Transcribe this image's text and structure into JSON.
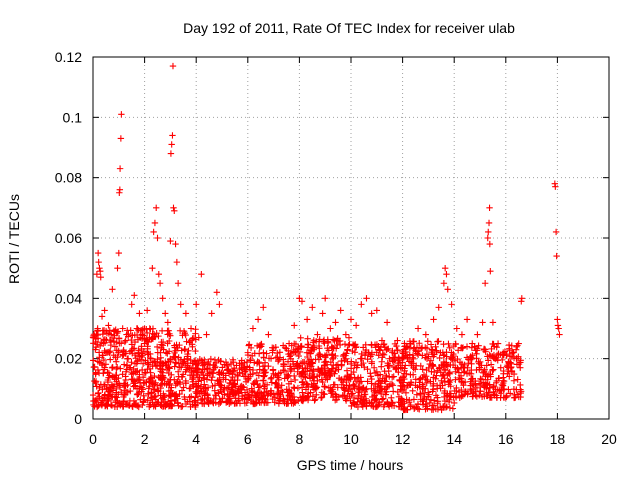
{
  "chart_data": {
    "type": "scatter",
    "title": "Day 192 of 2011, Rate Of TEC Index for receiver ulab",
    "xlabel": "GPS time / hours",
    "ylabel": "ROTI / TECUs",
    "xlim": [
      0,
      20
    ],
    "ylim": [
      0,
      0.12
    ],
    "x_ticks": [
      0,
      2,
      4,
      6,
      8,
      10,
      12,
      14,
      16,
      18,
      20
    ],
    "x_tick_labels": [
      "0",
      "2",
      "4",
      "6",
      "8",
      "10",
      "12",
      "14",
      "16",
      "18",
      "20"
    ],
    "y_ticks": [
      0,
      0.02,
      0.04,
      0.06,
      0.08,
      0.1,
      0.12
    ],
    "y_tick_labels": [
      "0",
      "0.02",
      "0.04",
      "0.06",
      "0.08",
      "0.1",
      "0.12"
    ],
    "grid": true,
    "marker": "plus",
    "color": "#ff0000",
    "series": [
      {
        "points": [
          [
            0.1,
            0.012
          ],
          [
            0.15,
            0.048
          ],
          [
            0.2,
            0.055
          ],
          [
            0.22,
            0.052
          ],
          [
            0.25,
            0.05
          ],
          [
            0.28,
            0.049
          ],
          [
            0.3,
            0.047
          ],
          [
            0.18,
            0.03
          ],
          [
            0.35,
            0.034
          ],
          [
            0.4,
            0.025
          ],
          [
            0.45,
            0.036
          ],
          [
            0.5,
            0.022
          ],
          [
            0.6,
            0.031
          ],
          [
            0.7,
            0.028
          ],
          [
            0.75,
            0.043
          ],
          [
            0.85,
            0.024
          ],
          [
            0.9,
            0.019
          ],
          [
            0.95,
            0.05
          ],
          [
            1.0,
            0.055
          ],
          [
            1.05,
            0.083
          ],
          [
            1.08,
            0.093
          ],
          [
            1.1,
            0.101
          ],
          [
            1.02,
            0.075
          ],
          [
            1.04,
            0.076
          ],
          [
            1.15,
            0.03
          ],
          [
            1.3,
            0.028
          ],
          [
            1.5,
            0.038
          ],
          [
            1.6,
            0.041
          ],
          [
            1.7,
            0.03
          ],
          [
            1.8,
            0.035
          ],
          [
            1.9,
            0.028
          ],
          [
            2.0,
            0.025
          ],
          [
            2.1,
            0.036
          ],
          [
            2.2,
            0.03
          ],
          [
            2.3,
            0.05
          ],
          [
            2.35,
            0.062
          ],
          [
            2.4,
            0.065
          ],
          [
            2.45,
            0.07
          ],
          [
            2.5,
            0.06
          ],
          [
            2.55,
            0.048
          ],
          [
            2.6,
            0.045
          ],
          [
            2.7,
            0.04
          ],
          [
            2.8,
            0.035
          ],
          [
            2.9,
            0.032
          ],
          [
            3.0,
            0.059
          ],
          [
            3.02,
            0.088
          ],
          [
            3.05,
            0.091
          ],
          [
            3.08,
            0.094
          ],
          [
            3.1,
            0.117
          ],
          [
            3.12,
            0.07
          ],
          [
            3.15,
            0.069
          ],
          [
            3.2,
            0.058
          ],
          [
            3.25,
            0.052
          ],
          [
            3.3,
            0.045
          ],
          [
            3.4,
            0.038
          ],
          [
            3.6,
            0.035
          ],
          [
            3.8,
            0.03
          ],
          [
            4.0,
            0.038
          ],
          [
            4.1,
            0.027
          ],
          [
            4.2,
            0.048
          ],
          [
            4.4,
            0.028
          ],
          [
            4.6,
            0.035
          ],
          [
            4.8,
            0.042
          ],
          [
            4.9,
            0.038
          ],
          [
            5.2,
            0.018
          ],
          [
            5.5,
            0.016
          ],
          [
            5.8,
            0.015
          ],
          [
            6.0,
            0.022
          ],
          [
            6.2,
            0.03
          ],
          [
            6.4,
            0.033
          ],
          [
            6.6,
            0.037
          ],
          [
            6.8,
            0.028
          ],
          [
            7.0,
            0.015
          ],
          [
            7.2,
            0.013
          ],
          [
            7.4,
            0.018
          ],
          [
            7.6,
            0.025
          ],
          [
            7.8,
            0.031
          ],
          [
            8.0,
            0.04
          ],
          [
            8.1,
            0.039
          ],
          [
            8.3,
            0.033
          ],
          [
            8.5,
            0.037
          ],
          [
            8.7,
            0.028
          ],
          [
            8.9,
            0.035
          ],
          [
            9.0,
            0.04
          ],
          [
            9.2,
            0.03
          ],
          [
            9.4,
            0.032
          ],
          [
            9.6,
            0.036
          ],
          [
            9.8,
            0.028
          ],
          [
            10.0,
            0.033
          ],
          [
            10.2,
            0.031
          ],
          [
            10.4,
            0.038
          ],
          [
            10.6,
            0.04
          ],
          [
            10.8,
            0.035
          ],
          [
            11.0,
            0.036
          ],
          [
            11.2,
            0.026
          ],
          [
            11.4,
            0.032
          ],
          [
            11.6,
            0.022
          ],
          [
            11.8,
            0.026
          ],
          [
            12.0,
            0.02
          ],
          [
            12.3,
            0.025
          ],
          [
            12.6,
            0.03
          ],
          [
            12.9,
            0.028
          ],
          [
            13.2,
            0.033
          ],
          [
            13.4,
            0.037
          ],
          [
            13.6,
            0.045
          ],
          [
            13.65,
            0.05
          ],
          [
            13.7,
            0.048
          ],
          [
            13.75,
            0.043
          ],
          [
            13.9,
            0.038
          ],
          [
            14.1,
            0.03
          ],
          [
            14.3,
            0.028
          ],
          [
            14.5,
            0.033
          ],
          [
            14.7,
            0.025
          ],
          [
            14.9,
            0.028
          ],
          [
            15.1,
            0.032
          ],
          [
            15.2,
            0.045
          ],
          [
            15.3,
            0.06
          ],
          [
            15.32,
            0.062
          ],
          [
            15.35,
            0.065
          ],
          [
            15.37,
            0.07
          ],
          [
            15.4,
            0.049
          ],
          [
            15.38,
            0.058
          ],
          [
            15.5,
            0.032
          ],
          [
            15.7,
            0.025
          ],
          [
            15.9,
            0.022
          ],
          [
            16.1,
            0.019
          ],
          [
            16.3,
            0.022
          ],
          [
            16.5,
            0.025
          ],
          [
            16.6,
            0.039
          ],
          [
            16.62,
            0.04
          ],
          [
            17.9,
            0.078
          ],
          [
            17.92,
            0.077
          ],
          [
            17.95,
            0.062
          ],
          [
            17.97,
            0.054
          ],
          [
            18.0,
            0.033
          ],
          [
            18.02,
            0.031
          ],
          [
            18.05,
            0.03
          ],
          [
            18.08,
            0.028
          ]
        ]
      }
    ],
    "dense_bands": [
      {
        "x0": 0.0,
        "x1": 2.0,
        "y0": 0.004,
        "y1": 0.03,
        "n": 320
      },
      {
        "x0": 2.0,
        "x1": 4.0,
        "y0": 0.004,
        "y1": 0.03,
        "n": 320
      },
      {
        "x0": 4.0,
        "x1": 6.0,
        "y0": 0.005,
        "y1": 0.02,
        "n": 240
      },
      {
        "x0": 6.0,
        "x1": 8.0,
        "y0": 0.005,
        "y1": 0.025,
        "n": 240
      },
      {
        "x0": 8.0,
        "x1": 10.0,
        "y0": 0.006,
        "y1": 0.027,
        "n": 260
      },
      {
        "x0": 10.0,
        "x1": 12.0,
        "y0": 0.004,
        "y1": 0.025,
        "n": 260
      },
      {
        "x0": 12.0,
        "x1": 14.0,
        "y0": 0.003,
        "y1": 0.026,
        "n": 260
      },
      {
        "x0": 14.0,
        "x1": 16.6,
        "y0": 0.007,
        "y1": 0.025,
        "n": 260
      }
    ]
  }
}
